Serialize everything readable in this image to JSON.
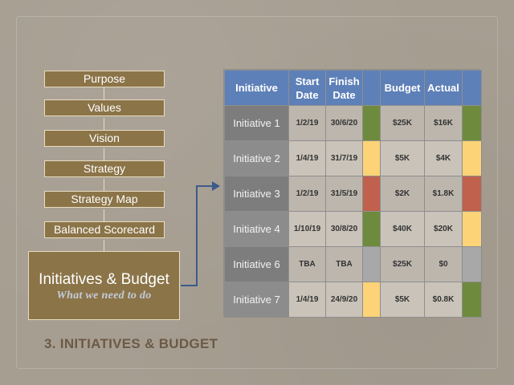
{
  "hierarchy": {
    "steps": [
      "Purpose",
      "Values",
      "Vision",
      "Strategy",
      "Strategy Map",
      "Balanced Scorecard"
    ],
    "current_title": "Initiatives & Budget",
    "current_subtitle": "What we need to do"
  },
  "table": {
    "headers": {
      "initiative": "Initiative",
      "start": "Start Date",
      "finish": "Finish Date",
      "budget": "Budget",
      "actual": "Actual"
    },
    "rows": [
      {
        "name": "Initiative 1",
        "start": "1/2/19",
        "finish": "30/6/20",
        "status1": "green",
        "budget": "$25K",
        "actual": "$16K",
        "status2": "green"
      },
      {
        "name": "Initiative 2",
        "start": "1/4/19",
        "finish": "31/7/19",
        "status1": "yellow",
        "budget": "$5K",
        "actual": "$4K",
        "status2": "yellow"
      },
      {
        "name": "Initiative 3",
        "start": "1/2/19",
        "finish": "31/5/19",
        "status1": "red",
        "budget": "$2K",
        "actual": "$1.8K",
        "status2": "red"
      },
      {
        "name": "Initiative 4",
        "start": "1/10/19",
        "finish": "30/8/20",
        "status1": "green",
        "budget": "$40K",
        "actual": "$20K",
        "status2": "yellow"
      },
      {
        "name": "Initiative 6",
        "start": "TBA",
        "finish": "TBA",
        "status1": "grey",
        "budget": "$25K",
        "actual": "$0",
        "status2": "grey"
      },
      {
        "name": "Initiative 7",
        "start": "1/4/19",
        "finish": "24/9/20",
        "status1": "yellow",
        "budget": "$5K",
        "actual": "$0.8K",
        "status2": "green"
      }
    ]
  },
  "heading": "3. INITIATIVES & BUDGET",
  "colors": {
    "green": "#6e8b3d",
    "yellow": "#fcd376",
    "red": "#c0614d",
    "grey": "#a8a8a8",
    "header_blue": "#5e80b8",
    "box_brown": "#8b7448"
  }
}
